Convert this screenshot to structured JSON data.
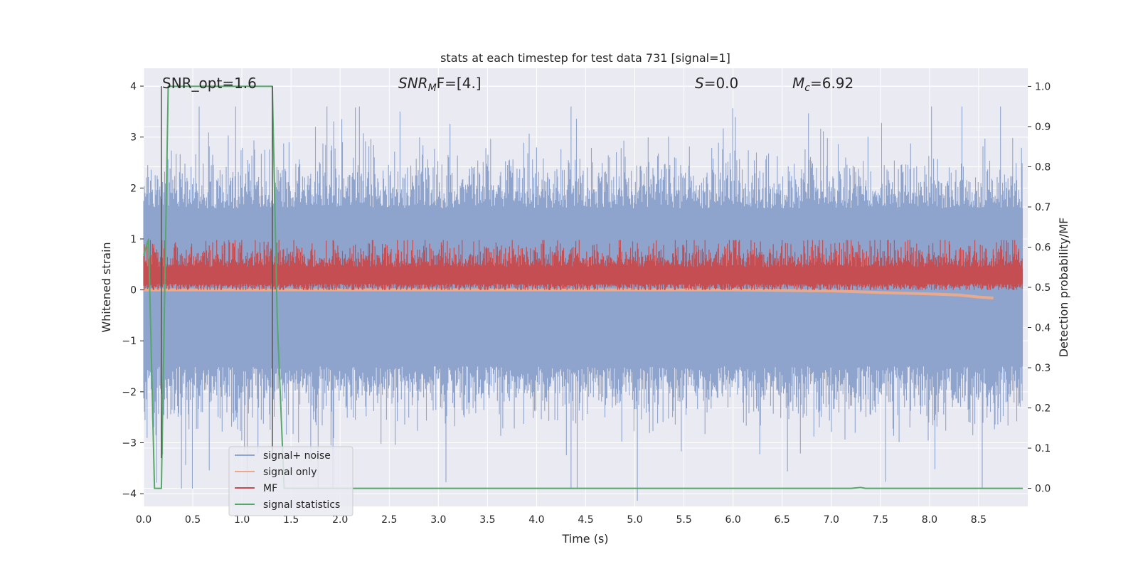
{
  "chart_data": {
    "type": "line",
    "title": "stats at each timestep for test data 731 [signal=1]",
    "xlabel": "Time (s)",
    "ylabel": "Whitened strain",
    "ylabel_right": "Detection probability/MF",
    "xlim": [
      0.0,
      9.0
    ],
    "ylim": [
      -4.25,
      4.35
    ],
    "ylim_right": [
      -0.045,
      1.045
    ],
    "x_ticks": [
      "0.0",
      "0.5",
      "1.0",
      "1.5",
      "2.0",
      "2.5",
      "3.0",
      "3.5",
      "4.0",
      "4.5",
      "5.0",
      "5.5",
      "6.0",
      "6.5",
      "7.0",
      "7.5",
      "8.0",
      "8.5"
    ],
    "y_ticks": [
      "−4",
      "−3",
      "−2",
      "−1",
      "0",
      "1",
      "2",
      "3",
      "4"
    ],
    "y_ticks_right": [
      "0.0",
      "0.1",
      "0.2",
      "0.3",
      "0.4",
      "0.5",
      "0.6",
      "0.7",
      "0.8",
      "0.9",
      "1.0"
    ],
    "grid": true,
    "legend_position": "lower-left",
    "annotations": {
      "snr_opt": "SNR_opt=1.6",
      "snr_mf_base": "SNR",
      "snr_mf_sub": "M",
      "snr_mf_rest": "F=[4.]",
      "s_italic": "S",
      "s_rest": "=0.0",
      "mc_base": "M",
      "mc_sub": "c",
      "mc_rest": "=6.92"
    },
    "series": [
      {
        "name": "signal+ noise",
        "color": "#8fa4cc",
        "summary": {
          "typical_band": [
            -1.5,
            1.6
          ],
          "spike_max": 3.6,
          "spike_min": -3.9
        }
      },
      {
        "name": "signal only",
        "color": "#e8a98c",
        "x": [
          0.0,
          1.0,
          2.0,
          3.0,
          4.0,
          5.0,
          6.0,
          7.0,
          7.5,
          8.0,
          8.3,
          8.5,
          8.65
        ],
        "values": [
          0.0,
          0.0,
          0.0,
          0.0,
          0.0,
          0.0,
          0.0,
          -0.02,
          -0.05,
          -0.08,
          -0.1,
          -0.14,
          -0.16
        ]
      },
      {
        "name": "MF",
        "color": "#c44e52",
        "summary": {
          "typical_band": [
            0.0,
            0.95
          ]
        }
      },
      {
        "name": "signal statistics",
        "color": "#55a868",
        "axis": "right",
        "x": [
          0.0,
          0.05,
          0.11,
          0.18,
          0.25,
          1.31,
          1.36,
          1.43,
          7.2,
          7.3,
          7.35,
          8.95
        ],
        "values": [
          0.58,
          0.62,
          0.0,
          0.0,
          1.0,
          1.0,
          0.42,
          0.0,
          0.0,
          0.002,
          0.0,
          0.0
        ]
      }
    ],
    "vertical_markers": [
      0.18,
      1.31
    ]
  }
}
